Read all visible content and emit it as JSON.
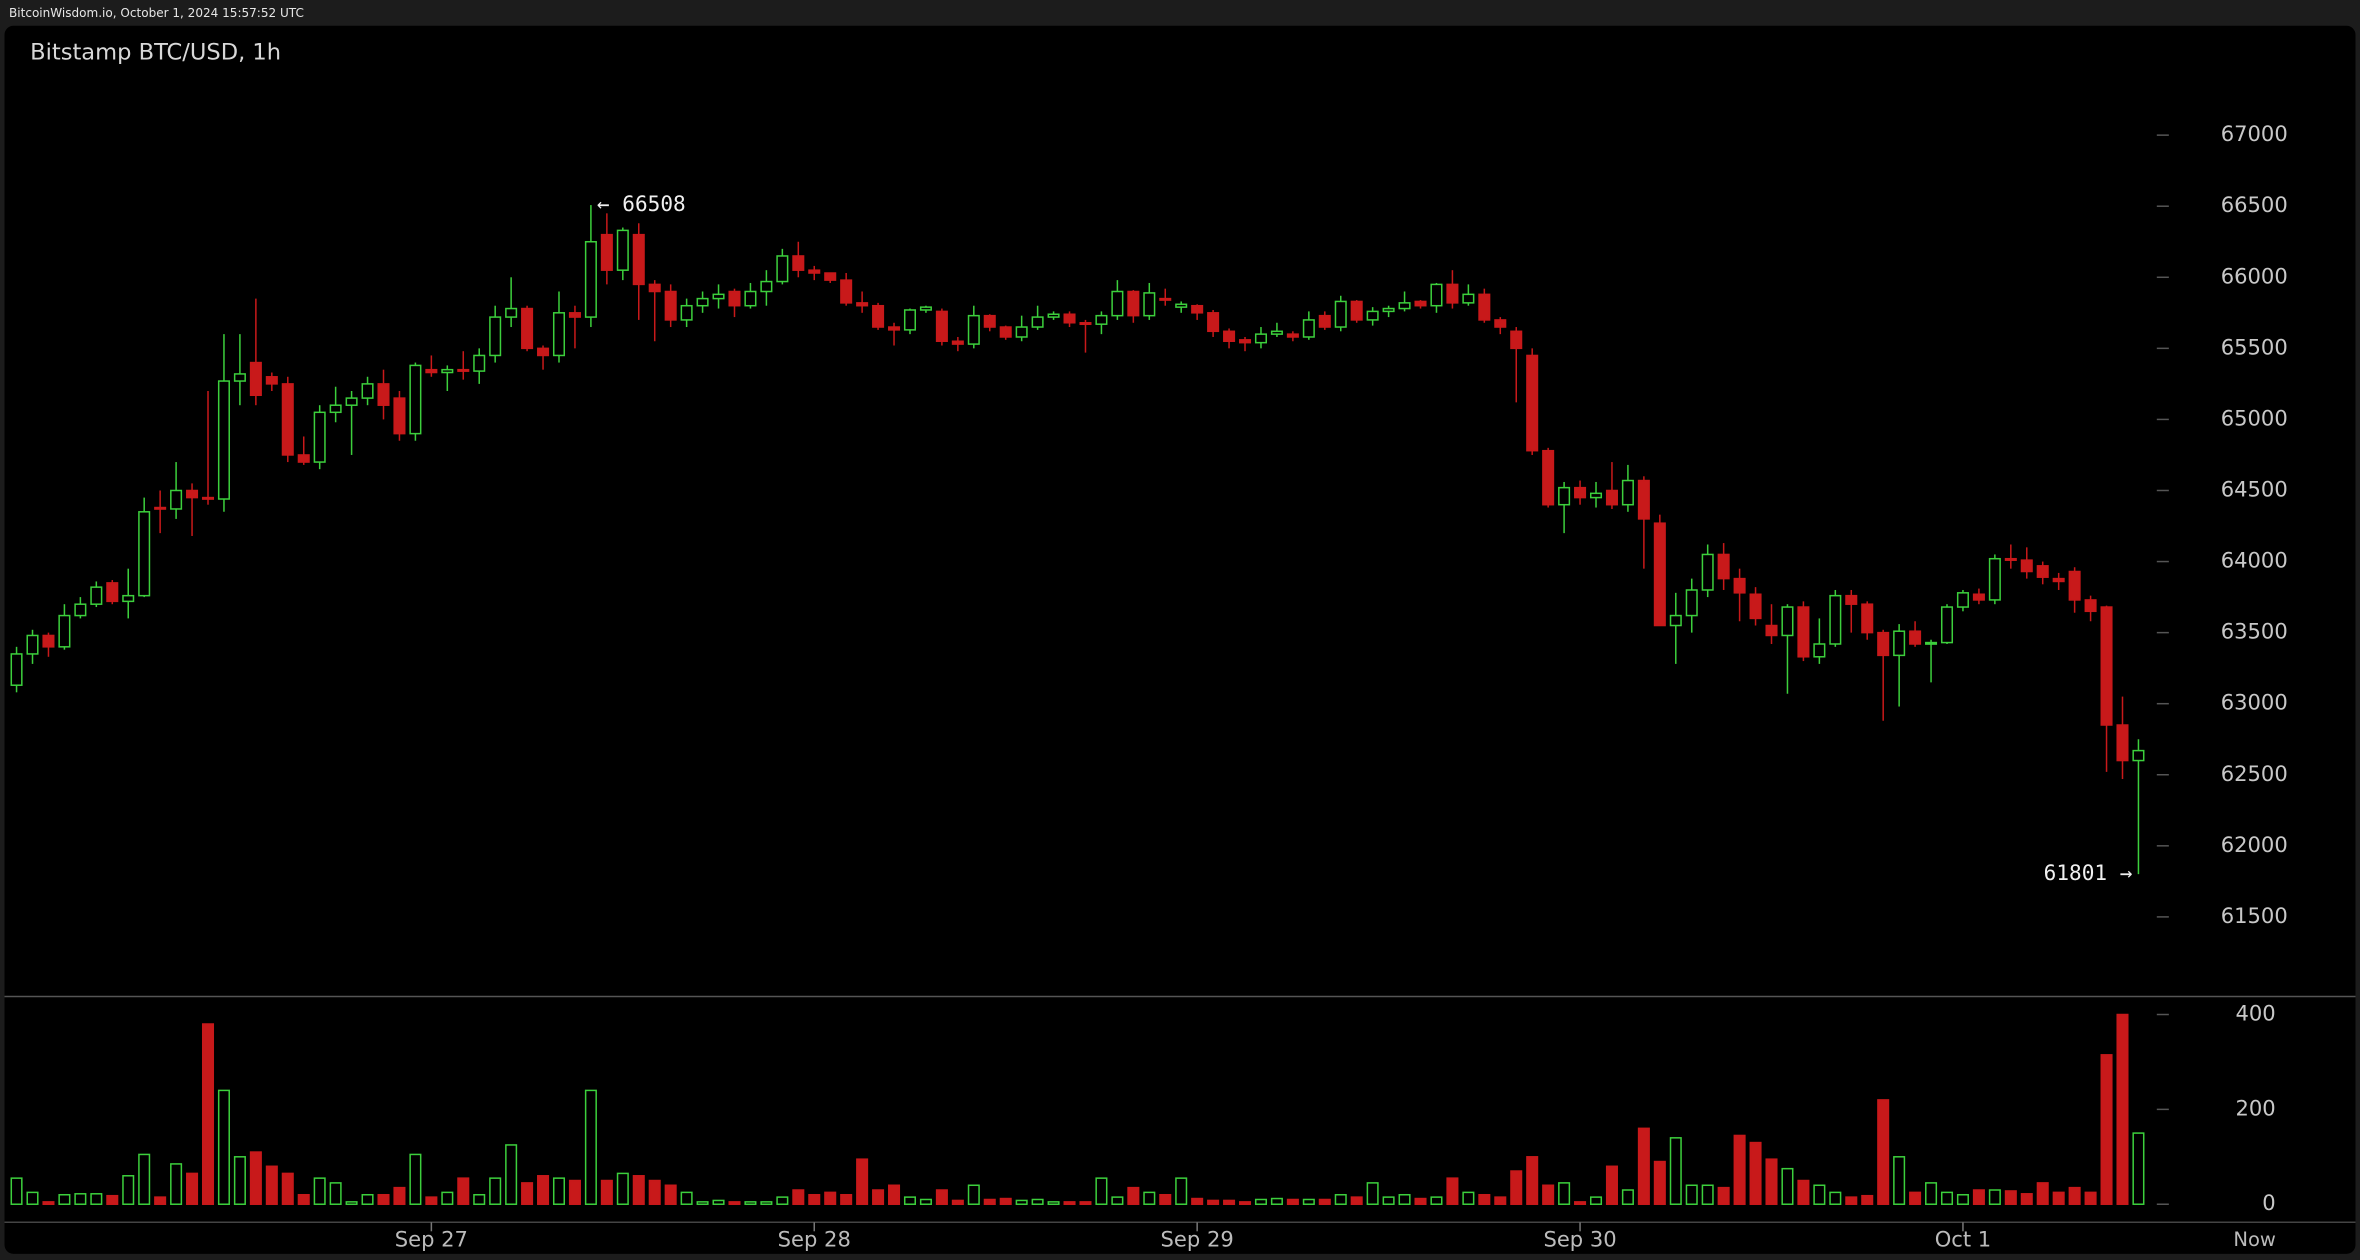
{
  "header": {
    "site": "BitcoinWisdom.io, October 1, 2024 15:57:52 UTC"
  },
  "chart_data": {
    "type": "candlestick",
    "title": "Bitstamp BTC/USD, 1h",
    "now_label": "Now",
    "categories": [
      null,
      null,
      null,
      null,
      null,
      null,
      null,
      null,
      null,
      null,
      null,
      null,
      null,
      null,
      null,
      null,
      null,
      null,
      null,
      null,
      null,
      null,
      null,
      null,
      null,
      null,
      "Sep 27",
      null,
      null,
      null,
      null,
      null,
      null,
      null,
      null,
      null,
      null,
      null,
      null,
      null,
      null,
      null,
      null,
      null,
      null,
      null,
      null,
      null,
      null,
      null,
      "Sep 28",
      null,
      null,
      null,
      null,
      null,
      null,
      null,
      null,
      null,
      null,
      null,
      null,
      null,
      null,
      null,
      null,
      null,
      null,
      null,
      null,
      null,
      null,
      null,
      "Sep 29",
      null,
      null,
      null,
      null,
      null,
      null,
      null,
      null,
      null,
      null,
      null,
      null,
      null,
      null,
      null,
      null,
      null,
      null,
      null,
      null,
      null,
      null,
      null,
      "Sep 30",
      null,
      null,
      null,
      null,
      null,
      null,
      null,
      null,
      null,
      null,
      null,
      null,
      null,
      null,
      null,
      null,
      null,
      null,
      null,
      null,
      null,
      null,
      null,
      "Oct 1",
      null,
      null,
      null,
      null,
      null,
      null,
      null,
      null,
      null,
      null,
      null
    ],
    "open": [
      63130,
      63350,
      63480,
      63400,
      63620,
      63700,
      63850,
      63720,
      63760,
      64380,
      64370,
      64500,
      64450,
      64440,
      65270,
      65400,
      65300,
      65250,
      64750,
      64700,
      65050,
      65100,
      65150,
      65250,
      65150,
      64900,
      65350,
      65330,
      65350,
      65340,
      65450,
      65720,
      65780,
      65500,
      65450,
      65750,
      65720,
      66300,
      66050,
      66300,
      65950,
      65900,
      65700,
      65800,
      65850,
      65900,
      65800,
      65900,
      65970,
      66150,
      66050,
      66030,
      65980,
      65820,
      65800,
      65650,
      65630,
      65770,
      65760,
      65550,
      65530,
      65730,
      65650,
      65580,
      65650,
      65720,
      65740,
      65680,
      65670,
      65730,
      65900,
      65730,
      65850,
      65790,
      65800,
      65750,
      65620,
      65560,
      65540,
      65600,
      65600,
      65580,
      65730,
      65650,
      65830,
      65700,
      65760,
      65780,
      65830,
      65800,
      65950,
      65820,
      65880,
      65700,
      65620,
      65450,
      64780,
      64400,
      64520,
      64450,
      64500,
      64400,
      64570,
      64270,
      63550,
      63620,
      63800,
      64050,
      63880,
      63770,
      63550,
      63480,
      63680,
      63330,
      63420,
      63760,
      63700,
      63500,
      63340,
      63510,
      63420,
      63430,
      63680,
      63770,
      63730,
      64020,
      64010,
      63970,
      63880,
      63930,
      63730,
      63680,
      62850,
      62600
    ],
    "high": [
      63400,
      63520,
      63500,
      63700,
      63750,
      63860,
      63870,
      63950,
      64450,
      64500,
      64700,
      64550,
      65200,
      65600,
      65600,
      65850,
      65330,
      65300,
      64880,
      65100,
      65230,
      65200,
      65300,
      65350,
      65200,
      65400,
      65450,
      65380,
      65480,
      65500,
      65800,
      66000,
      65800,
      65520,
      65900,
      65800,
      66508,
      66450,
      66350,
      66380,
      65980,
      65950,
      65850,
      65900,
      65950,
      65920,
      65960,
      66050,
      66200,
      66250,
      66080,
      66030,
      66030,
      65900,
      65820,
      65680,
      65780,
      65800,
      65780,
      65580,
      65800,
      65740,
      65660,
      65730,
      65800,
      65760,
      65760,
      65700,
      65760,
      65980,
      65910,
      65960,
      65920,
      65830,
      65810,
      65770,
      65640,
      65580,
      65650,
      65680,
      65620,
      65760,
      65760,
      65870,
      65840,
      65790,
      65800,
      65900,
      65840,
      65960,
      66050,
      65950,
      65920,
      65720,
      65650,
      65500,
      64800,
      64560,
      64570,
      64560,
      64700,
      64680,
      64600,
      64330,
      63780,
      63880,
      64120,
      64130,
      63950,
      63820,
      63700,
      63700,
      63720,
      63600,
      63800,
      63800,
      63720,
      63520,
      63560,
      63580,
      63450,
      63700,
      63800,
      63810,
      64050,
      64120,
      64100,
      64000,
      63920,
      63960,
      63760,
      63690,
      63050,
      62750
    ],
    "low": [
      63080,
      63280,
      63330,
      63380,
      63600,
      63680,
      63700,
      63600,
      63750,
      64200,
      64300,
      64180,
      64400,
      64350,
      65100,
      65100,
      65200,
      64700,
      64680,
      64650,
      64980,
      64750,
      65100,
      65000,
      64850,
      64850,
      65300,
      65200,
      65280,
      65250,
      65400,
      65650,
      65480,
      65350,
      65400,
      65500,
      65650,
      65950,
      65980,
      65700,
      65550,
      65650,
      65650,
      65750,
      65780,
      65720,
      65780,
      65800,
      65950,
      66000,
      65980,
      65960,
      65800,
      65750,
      65630,
      65520,
      65600,
      65750,
      65520,
      65480,
      65500,
      65620,
      65560,
      65550,
      65630,
      65700,
      65650,
      65470,
      65600,
      65700,
      65680,
      65700,
      65800,
      65750,
      65700,
      65580,
      65500,
      65480,
      65500,
      65580,
      65550,
      65560,
      65630,
      65620,
      65680,
      65660,
      65720,
      65760,
      65780,
      65750,
      65780,
      65800,
      65680,
      65600,
      65120,
      64750,
      64380,
      64200,
      64400,
      64380,
      64370,
      64350,
      63950,
      63550,
      63280,
      63500,
      63750,
      63800,
      63580,
      63550,
      63420,
      63070,
      63300,
      63280,
      63400,
      63500,
      63450,
      62880,
      62980,
      63400,
      63150,
      63420,
      63650,
      63700,
      63700,
      63950,
      63880,
      63840,
      63800,
      63640,
      63580,
      62520,
      62470,
      61801
    ],
    "close": [
      63350,
      63480,
      63400,
      63620,
      63700,
      63820,
      63720,
      63760,
      64350,
      64370,
      64500,
      64450,
      64440,
      65270,
      65320,
      65170,
      65250,
      64750,
      64700,
      65050,
      65100,
      65150,
      65250,
      65100,
      64900,
      65380,
      65330,
      65350,
      65340,
      65450,
      65720,
      65780,
      65500,
      65450,
      65750,
      65720,
      66250,
      66050,
      66330,
      65950,
      65900,
      65700,
      65800,
      65850,
      65880,
      65800,
      65900,
      65970,
      66150,
      66050,
      66030,
      65980,
      65820,
      65800,
      65650,
      65630,
      65770,
      65790,
      65550,
      65530,
      65730,
      65650,
      65580,
      65650,
      65720,
      65740,
      65680,
      65670,
      65730,
      65900,
      65730,
      65890,
      65840,
      65810,
      65750,
      65620,
      65550,
      65540,
      65600,
      65620,
      65580,
      65700,
      65650,
      65830,
      65700,
      65760,
      65780,
      65820,
      65800,
      65950,
      65820,
      65880,
      65700,
      65650,
      65500,
      64780,
      64400,
      64520,
      64450,
      64480,
      64400,
      64570,
      64300,
      63550,
      63620,
      63800,
      64050,
      63880,
      63780,
      63600,
      63480,
      63680,
      63330,
      63420,
      63760,
      63700,
      63500,
      63340,
      63510,
      63420,
      63430,
      63680,
      63780,
      63730,
      64020,
      64010,
      63930,
      63890,
      63860,
      63730,
      63650,
      62850,
      62600,
      62670
    ],
    "volume": [
      55,
      25,
      5,
      20,
      22,
      22,
      18,
      60,
      105,
      15,
      85,
      65,
      380,
      240,
      100,
      110,
      80,
      65,
      20,
      55,
      45,
      5,
      20,
      20,
      35,
      105,
      15,
      25,
      55,
      20,
      55,
      125,
      45,
      60,
      55,
      50,
      240,
      50,
      65,
      60,
      50,
      40,
      25,
      5,
      8,
      5,
      5,
      5,
      15,
      30,
      20,
      25,
      20,
      95,
      30,
      40,
      15,
      10,
      30,
      8,
      40,
      10,
      12,
      8,
      10,
      5,
      5,
      5,
      55,
      15,
      35,
      25,
      20,
      55,
      12,
      8,
      8,
      5,
      10,
      12,
      10,
      10,
      10,
      20,
      15,
      45,
      15,
      20,
      12,
      15,
      55,
      25,
      20,
      15,
      70,
      100,
      40,
      45,
      5,
      15,
      80,
      30,
      160,
      90,
      140,
      40,
      40,
      35,
      145,
      130,
      95,
      75,
      50,
      40,
      25,
      15,
      18,
      220,
      100,
      25,
      45,
      25,
      20,
      30,
      30,
      28,
      22,
      45,
      25,
      35,
      25,
      315,
      400,
      150
    ],
    "up_color": "#3ccf3c",
    "down_color": "#c8191a",
    "ylim": [
      60940,
      67770
    ],
    "yticks": [
      61500,
      62000,
      62500,
      63000,
      63500,
      64000,
      64500,
      65000,
      65500,
      66000,
      66500,
      67000
    ],
    "volume_ylim": [
      -38,
      438
    ],
    "volume_ticks": [
      0,
      200,
      400
    ],
    "annotations": [
      {
        "value": 66508,
        "label": "← 66508"
      },
      {
        "value": 61801,
        "label": "61801 →"
      }
    ]
  }
}
